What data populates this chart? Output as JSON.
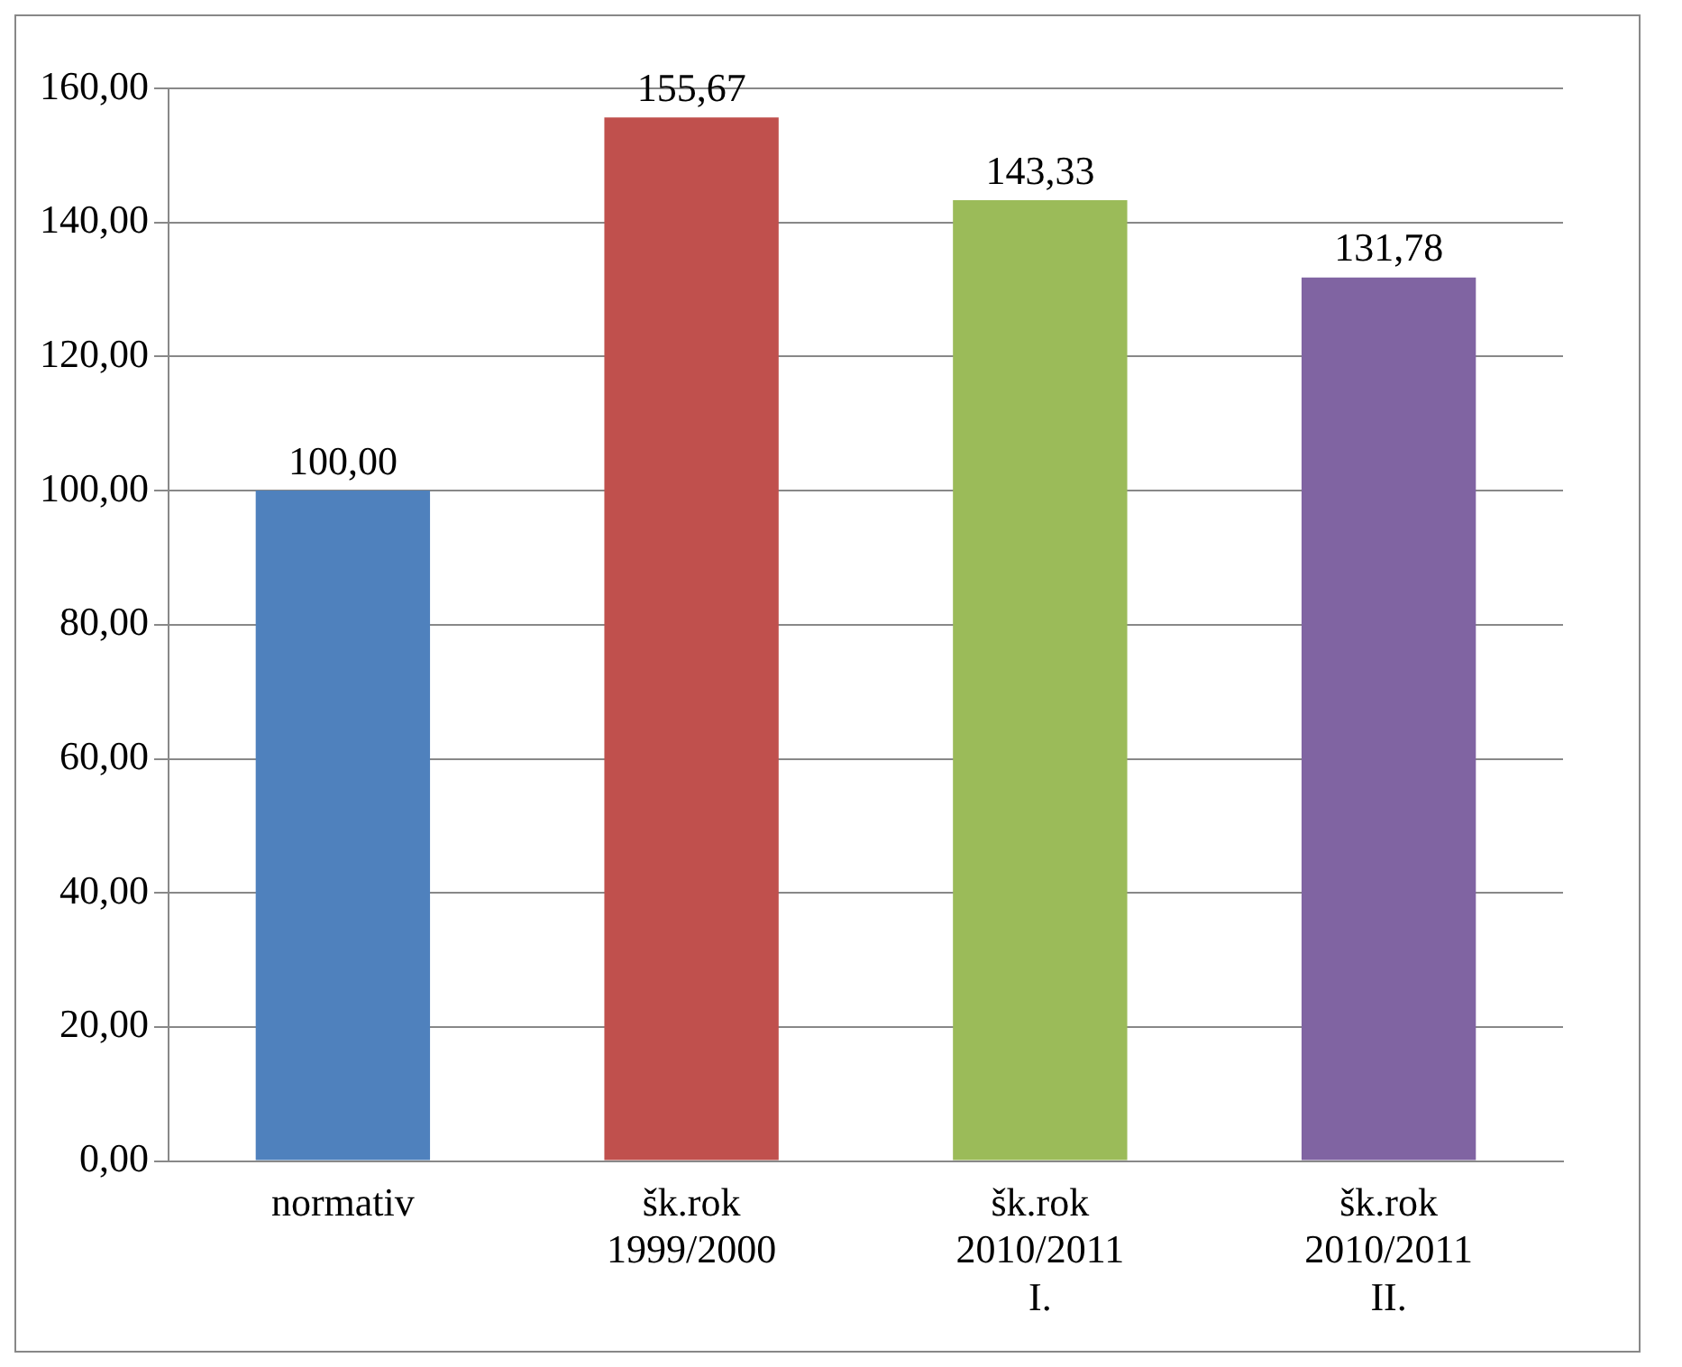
{
  "chart_data": {
    "type": "bar",
    "categories": [
      "normativ",
      "šk.rok 1999/2000",
      "šk.rok 2010/2011 I.",
      "šk.rok 2010/2011 II."
    ],
    "values": [
      100.0,
      155.67,
      143.33,
      131.78
    ],
    "colors": [
      "#4f81bd",
      "#c0504d",
      "#9bbb59",
      "#8064a2"
    ],
    "value_labels": [
      "100,00",
      "155,67",
      "143,33",
      "131,78"
    ],
    "ylim": [
      0,
      160
    ],
    "yticks": [
      {
        "value": 0,
        "label": "0,00"
      },
      {
        "value": 20,
        "label": "20,00"
      },
      {
        "value": 40,
        "label": "40,00"
      },
      {
        "value": 60,
        "label": "60,00"
      },
      {
        "value": 80,
        "label": "80,00"
      },
      {
        "value": 100,
        "label": "100,00"
      },
      {
        "value": 120,
        "label": "120,00"
      },
      {
        "value": 140,
        "label": "140,00"
      },
      {
        "value": 160,
        "label": "160,00"
      }
    ],
    "grid": "y",
    "legend": false
  }
}
